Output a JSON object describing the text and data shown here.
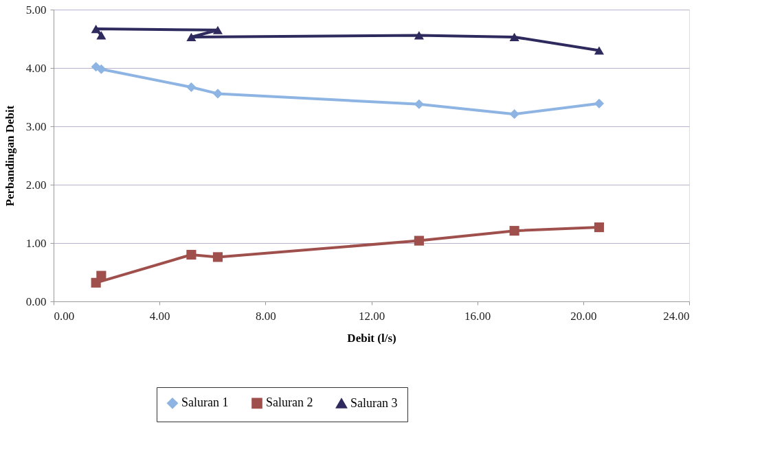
{
  "chart_data": {
    "type": "line",
    "xlabel": "Debit (l/s)",
    "ylabel": "Perbandingan Debit",
    "xlim": [
      0,
      24
    ],
    "xticks": [
      {
        "value": 0,
        "label": "0.00"
      },
      {
        "value": 4,
        "label": "4.00"
      },
      {
        "value": 8,
        "label": "8.00"
      },
      {
        "value": 12,
        "label": "12.00"
      },
      {
        "value": 16,
        "label": "16.00"
      },
      {
        "value": 20,
        "label": "20.00"
      },
      {
        "value": 24,
        "label": "24.00"
      }
    ],
    "ylim": [
      0,
      5
    ],
    "yticks": [
      {
        "value": 0,
        "label": "0.00"
      },
      {
        "value": 1,
        "label": "1.00"
      },
      {
        "value": 2,
        "label": "2.00"
      },
      {
        "value": 3,
        "label": "3.00"
      },
      {
        "value": 4,
        "label": "4.00"
      },
      {
        "value": 5,
        "label": "5.00"
      }
    ],
    "grid": "y",
    "legend": "bottom",
    "line_style": "solid",
    "series": [
      {
        "name": "Saluran 1",
        "color": "#8db4e2",
        "marker": "diamond",
        "x": [
          1.6,
          1.8,
          5.2,
          6.2,
          13.8,
          17.4,
          20.6
        ],
        "values": [
          4.02,
          3.98,
          3.67,
          3.56,
          3.38,
          3.21,
          3.39
        ]
      },
      {
        "name": "Saluran 2",
        "color": "#a0504c",
        "marker": "square",
        "x": [
          1.8,
          1.6,
          5.2,
          6.2,
          13.8,
          17.4,
          20.6
        ],
        "values": [
          0.44,
          0.32,
          0.8,
          0.76,
          1.04,
          1.21,
          1.27
        ]
      },
      {
        "name": "Saluran 3",
        "color": "#2e2a5e",
        "marker": "triangle",
        "x": [
          1.8,
          1.6,
          6.2,
          5.2,
          13.8,
          17.4,
          20.6
        ],
        "values": [
          4.56,
          4.67,
          4.65,
          4.53,
          4.56,
          4.53,
          4.3
        ]
      }
    ]
  }
}
